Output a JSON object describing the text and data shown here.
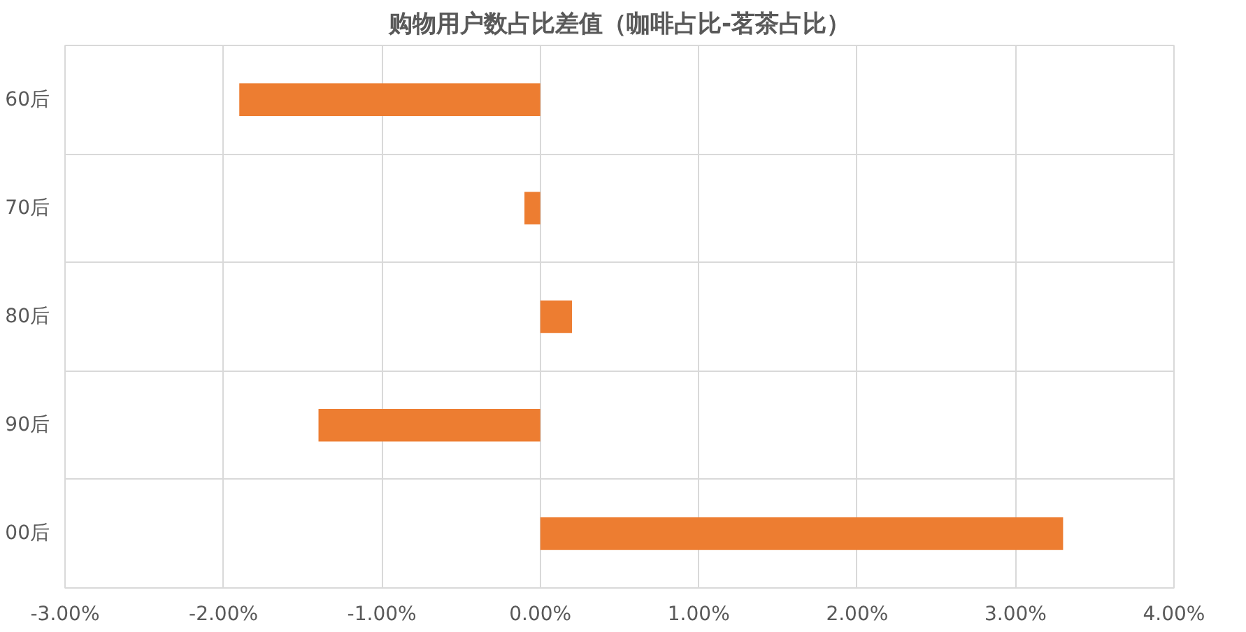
{
  "chart_data": {
    "type": "bar",
    "orientation": "horizontal",
    "title": "购物用户数占比差值（咖啡占比-茗茶占比）",
    "categories": [
      "60后",
      "70后",
      "80后",
      "90后",
      "00后"
    ],
    "values": [
      -1.9,
      -0.1,
      0.2,
      -1.4,
      3.3
    ],
    "color": "#ed7d31",
    "xlim": [
      -3,
      4
    ],
    "xticks": [
      {
        "value": -3,
        "label": "-3.00%"
      },
      {
        "value": -2,
        "label": "-2.00%"
      },
      {
        "value": -1,
        "label": "-1.00%"
      },
      {
        "value": 0,
        "label": "0.00%"
      },
      {
        "value": 1,
        "label": "1.00%"
      },
      {
        "value": 2,
        "label": "2.00%"
      },
      {
        "value": 3,
        "label": "3.00%"
      },
      {
        "value": 4,
        "label": "4.00%"
      }
    ],
    "grid": true
  }
}
